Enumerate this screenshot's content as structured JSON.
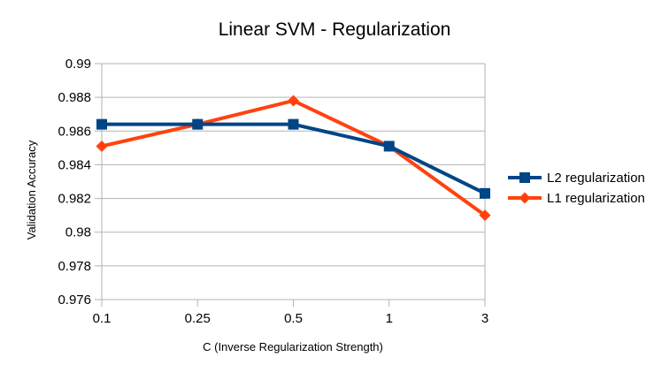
{
  "chart_data": {
    "type": "line",
    "title": "Linear SVM - Regularization",
    "xlabel": "C (Inverse Regularization Strength)",
    "ylabel": "Validation Accuracy",
    "categories": [
      "0.1",
      "0.25",
      "0.5",
      "1",
      "3"
    ],
    "ylim": [
      0.976,
      0.99
    ],
    "yticks": [
      "0.976",
      "0.978",
      "0.98",
      "0.982",
      "0.984",
      "0.986",
      "0.988",
      "0.99"
    ],
    "grid": true,
    "legend_position": "right",
    "series": [
      {
        "name": "L2 regularization",
        "values": [
          0.9864,
          0.9864,
          0.9864,
          0.9851,
          0.9823
        ],
        "color": "#004586",
        "marker": "square"
      },
      {
        "name": "L1 regularization",
        "values": [
          0.9851,
          0.9864,
          0.9878,
          0.9851,
          0.981
        ],
        "color": "#ff420e",
        "marker": "diamond"
      }
    ]
  }
}
